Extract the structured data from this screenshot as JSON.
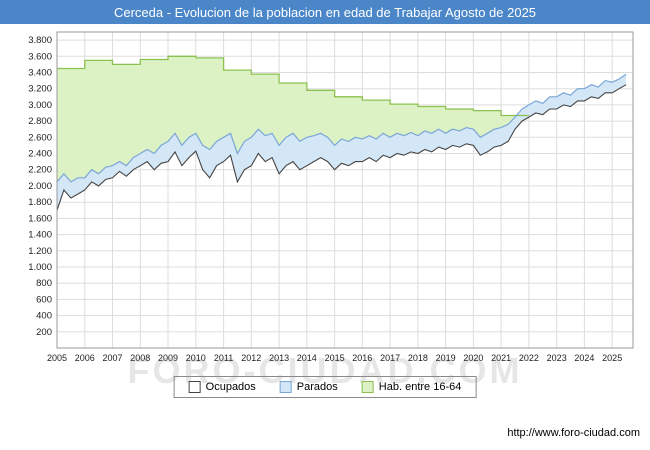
{
  "header": {
    "title": "Cerceda - Evolucion de la poblacion en edad de Trabajar Agosto de 2025"
  },
  "watermark": {
    "text": "FORO-CIUDAD.COM"
  },
  "footer": {
    "url_label": "http://www.foro-ciudad.com"
  },
  "colors": {
    "header_bg": "#4a86c8",
    "header_text": "#ffffff",
    "grid": "#dddddd",
    "plot_border": "#999999",
    "axis_text": "#222222"
  },
  "chart_data": {
    "type": "area",
    "title": "Cerceda - Evolucion de la poblacion en edad de Trabajar Agosto de 2025",
    "xlabel": "",
    "ylabel": "",
    "xlim": [
      2005,
      2025.75
    ],
    "ylim": [
      0,
      3900
    ],
    "grid": true,
    "legend_position": "bottom",
    "x_tick_labels": [
      "2005",
      "2006",
      "2007",
      "2008",
      "2009",
      "2010",
      "2011",
      "2012",
      "2013",
      "2014",
      "2015",
      "2016",
      "2017",
      "2018",
      "2019",
      "2020",
      "2021",
      "2022",
      "2023",
      "2024",
      "2025"
    ],
    "y_ticks": [
      200,
      400,
      600,
      800,
      1000,
      1200,
      1400,
      1600,
      1800,
      2000,
      2200,
      2400,
      2600,
      2800,
      3000,
      3200,
      3400,
      3600,
      3800
    ],
    "series": [
      {
        "name": "Ocupados",
        "role": "stack-base-line",
        "x_start": 2005,
        "x_step": 0.25,
        "stroke": "#444444",
        "fill": "#ffffff",
        "values": [
          1700,
          1950,
          1850,
          1900,
          1950,
          2050,
          2000,
          2080,
          2100,
          2180,
          2120,
          2200,
          2250,
          2300,
          2200,
          2280,
          2300,
          2420,
          2250,
          2350,
          2430,
          2200,
          2100,
          2250,
          2300,
          2380,
          2050,
          2200,
          2250,
          2400,
          2300,
          2350,
          2150,
          2250,
          2300,
          2200,
          2250,
          2300,
          2350,
          2300,
          2200,
          2280,
          2250,
          2300,
          2300,
          2350,
          2300,
          2380,
          2350,
          2400,
          2380,
          2420,
          2400,
          2450,
          2420,
          2480,
          2450,
          2500,
          2480,
          2520,
          2500,
          2380,
          2420,
          2480,
          2500,
          2550,
          2700,
          2800,
          2850,
          2900,
          2880,
          2950,
          2950,
          3000,
          2980,
          3050,
          3050,
          3100,
          3080,
          3150,
          3150,
          3200,
          3250
        ]
      },
      {
        "name": "Parados",
        "role": "stacked-band",
        "x_start": 2005,
        "x_step": 0.25,
        "stroke": "#7aa6d8",
        "fill": "#d4e7f7",
        "values": [
          350,
          200,
          200,
          200,
          150,
          150,
          150,
          150,
          150,
          120,
          130,
          150,
          150,
          150,
          200,
          220,
          250,
          230,
          250,
          250,
          220,
          300,
          350,
          300,
          300,
          270,
          350,
          350,
          350,
          300,
          320,
          300,
          350,
          350,
          350,
          350,
          350,
          320,
          300,
          300,
          300,
          300,
          300,
          300,
          280,
          270,
          280,
          270,
          250,
          250,
          240,
          240,
          220,
          230,
          230,
          220,
          200,
          200,
          200,
          200,
          200,
          220,
          230,
          220,
          220,
          210,
          150,
          150,
          150,
          150,
          140,
          150,
          150,
          150,
          140,
          150,
          150,
          150,
          140,
          150,
          130,
          120,
          130
        ]
      },
      {
        "name": "Hab. entre 16-64",
        "role": "step-top-band",
        "x_start": 2005,
        "x_step": 1,
        "stroke": "#8cc152",
        "fill": "#ddf2c4",
        "values": [
          3450,
          3550,
          3500,
          3560,
          3600,
          3580,
          3430,
          3380,
          3270,
          3180,
          3100,
          3060,
          3010,
          2980,
          2950,
          2930,
          2870
        ]
      }
    ]
  }
}
